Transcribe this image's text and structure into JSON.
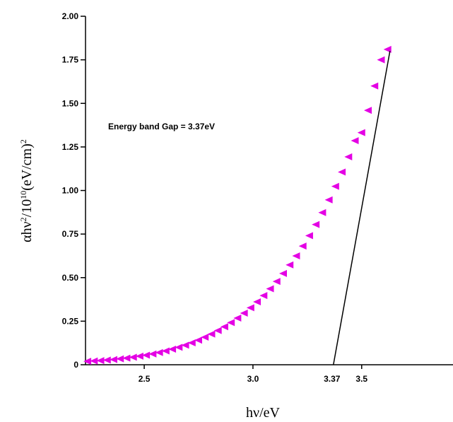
{
  "chart_data": {
    "type": "scatter",
    "title": "",
    "xlabel": "hν/eV",
    "ylabel_parts": {
      "base": "αhν",
      "sup1": "2",
      "mid": "/10",
      "sup2": "10",
      "tail": "(eV/cm)",
      "sup3": "2"
    },
    "xlim": [
      2.23,
      3.92
    ],
    "ylim": [
      0,
      2.0
    ],
    "x_ticks": [
      2.5,
      3.0,
      3.5
    ],
    "x_tick_labels": [
      "2.5",
      "3.0",
      "3.5"
    ],
    "y_ticks": [
      0,
      0.25,
      0.5,
      0.75,
      1.0,
      1.25,
      1.5,
      1.75,
      2.0
    ],
    "y_tick_labels": [
      "0",
      "0.25",
      "0.50",
      "0.75",
      "1.00",
      "1.25",
      "1.50",
      "1.75",
      "2.00"
    ],
    "marker_color": "#e400e4",
    "series": [
      {
        "x": [
          2.24,
          2.27,
          2.3,
          2.33,
          2.36,
          2.39,
          2.42,
          2.45,
          2.48,
          2.51,
          2.54,
          2.57,
          2.6,
          2.63,
          2.66,
          2.69,
          2.72,
          2.75,
          2.78,
          2.81,
          2.84,
          2.87,
          2.9,
          2.93,
          2.96,
          2.99,
          3.02,
          3.05,
          3.08,
          3.11,
          3.14,
          3.17,
          3.2,
          3.23,
          3.26,
          3.29,
          3.32,
          3.35,
          3.38,
          3.41,
          3.44,
          3.47,
          3.5,
          3.53,
          3.56,
          3.59,
          3.62
        ],
        "y": [
          0.02,
          0.022,
          0.024,
          0.027,
          0.03,
          0.034,
          0.038,
          0.043,
          0.049,
          0.055,
          0.062,
          0.07,
          0.079,
          0.089,
          0.1,
          0.112,
          0.126,
          0.141,
          0.158,
          0.176,
          0.196,
          0.218,
          0.242,
          0.268,
          0.296,
          0.327,
          0.361,
          0.397,
          0.436,
          0.478,
          0.524,
          0.573,
          0.625,
          0.681,
          0.741,
          0.805,
          0.873,
          0.946,
          1.024,
          1.106,
          1.193,
          1.286,
          1.332,
          1.46,
          1.6,
          1.75,
          1.81
        ]
      }
    ],
    "fit_line": {
      "x": [
        3.37,
        3.63
      ],
      "y": [
        0,
        1.8
      ]
    },
    "annotation": "Energy band Gap = 3.37eV",
    "gap_label": "3.37",
    "gap_value": 3.37
  }
}
